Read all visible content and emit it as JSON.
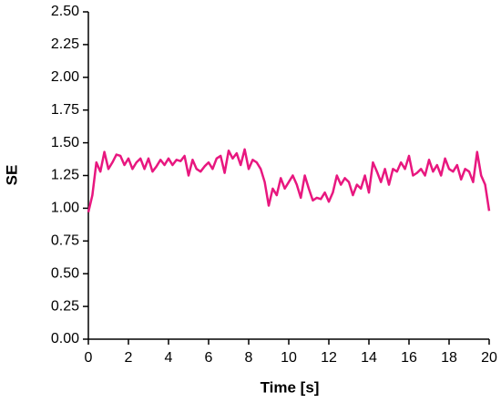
{
  "chart_data": {
    "type": "line",
    "xlabel": "Time [s]",
    "ylabel": "SE",
    "x": [
      0,
      0.2,
      0.4,
      0.6,
      0.8,
      1,
      1.2,
      1.4,
      1.6,
      1.8,
      2,
      2.2,
      2.4,
      2.6,
      2.8,
      3,
      3.2,
      3.4,
      3.6,
      3.8,
      4,
      4.2,
      4.4,
      4.6,
      4.8,
      5,
      5.2,
      5.4,
      5.6,
      5.8,
      6,
      6.2,
      6.4,
      6.6,
      6.8,
      7,
      7.2,
      7.4,
      7.6,
      7.8,
      8,
      8.2,
      8.4,
      8.6,
      8.8,
      9,
      9.2,
      9.4,
      9.6,
      9.8,
      10,
      10.2,
      10.4,
      10.6,
      10.8,
      11,
      11.2,
      11.4,
      11.6,
      11.8,
      12,
      12.2,
      12.4,
      12.6,
      12.8,
      13,
      13.2,
      13.4,
      13.6,
      13.8,
      14,
      14.2,
      14.4,
      14.6,
      14.8,
      15,
      15.2,
      15.4,
      15.6,
      15.8,
      16,
      16.2,
      16.4,
      16.6,
      16.8,
      17,
      17.2,
      17.4,
      17.6,
      17.8,
      18,
      18.2,
      18.4,
      18.6,
      18.8,
      19,
      19.2,
      19.4,
      19.6,
      19.8,
      20
    ],
    "series": [
      {
        "color": "#e8177f",
        "values": [
          0.97,
          1.1,
          1.35,
          1.28,
          1.43,
          1.3,
          1.35,
          1.41,
          1.4,
          1.33,
          1.38,
          1.3,
          1.35,
          1.38,
          1.3,
          1.38,
          1.28,
          1.32,
          1.37,
          1.33,
          1.38,
          1.33,
          1.37,
          1.36,
          1.4,
          1.25,
          1.37,
          1.3,
          1.28,
          1.32,
          1.35,
          1.3,
          1.38,
          1.4,
          1.27,
          1.44,
          1.38,
          1.42,
          1.33,
          1.45,
          1.3,
          1.37,
          1.35,
          1.3,
          1.2,
          1.02,
          1.15,
          1.1,
          1.23,
          1.15,
          1.2,
          1.25,
          1.18,
          1.08,
          1.25,
          1.15,
          1.06,
          1.08,
          1.07,
          1.12,
          1.05,
          1.12,
          1.25,
          1.18,
          1.23,
          1.2,
          1.1,
          1.18,
          1.15,
          1.25,
          1.12,
          1.35,
          1.28,
          1.2,
          1.3,
          1.18,
          1.3,
          1.28,
          1.35,
          1.3,
          1.4,
          1.25,
          1.27,
          1.3,
          1.25,
          1.37,
          1.28,
          1.33,
          1.25,
          1.38,
          1.3,
          1.28,
          1.33,
          1.22,
          1.3,
          1.28,
          1.2,
          1.43,
          1.25,
          1.18,
          0.98
        ]
      }
    ],
    "xlim": [
      0,
      20
    ],
    "xticks": [
      0,
      2,
      4,
      6,
      8,
      10,
      12,
      14,
      16,
      18,
      20
    ],
    "ylim": [
      0,
      2.5
    ],
    "yticks": [
      {
        "value": 0,
        "label": "0.00"
      },
      {
        "value": 0.25,
        "label": "0.25"
      },
      {
        "value": 0.5,
        "label": "0.50"
      },
      {
        "value": 0.75,
        "label": "0.75"
      },
      {
        "value": 1,
        "label": "1.00"
      },
      {
        "value": 1.25,
        "label": "1.25"
      },
      {
        "value": 1.5,
        "label": "1.50"
      },
      {
        "value": 1.75,
        "label": "1.75"
      },
      {
        "value": 2,
        "label": "2.00"
      },
      {
        "value": 2.25,
        "label": "2.25"
      },
      {
        "value": 2.5,
        "label": "2.50"
      }
    ],
    "grid": false
  }
}
